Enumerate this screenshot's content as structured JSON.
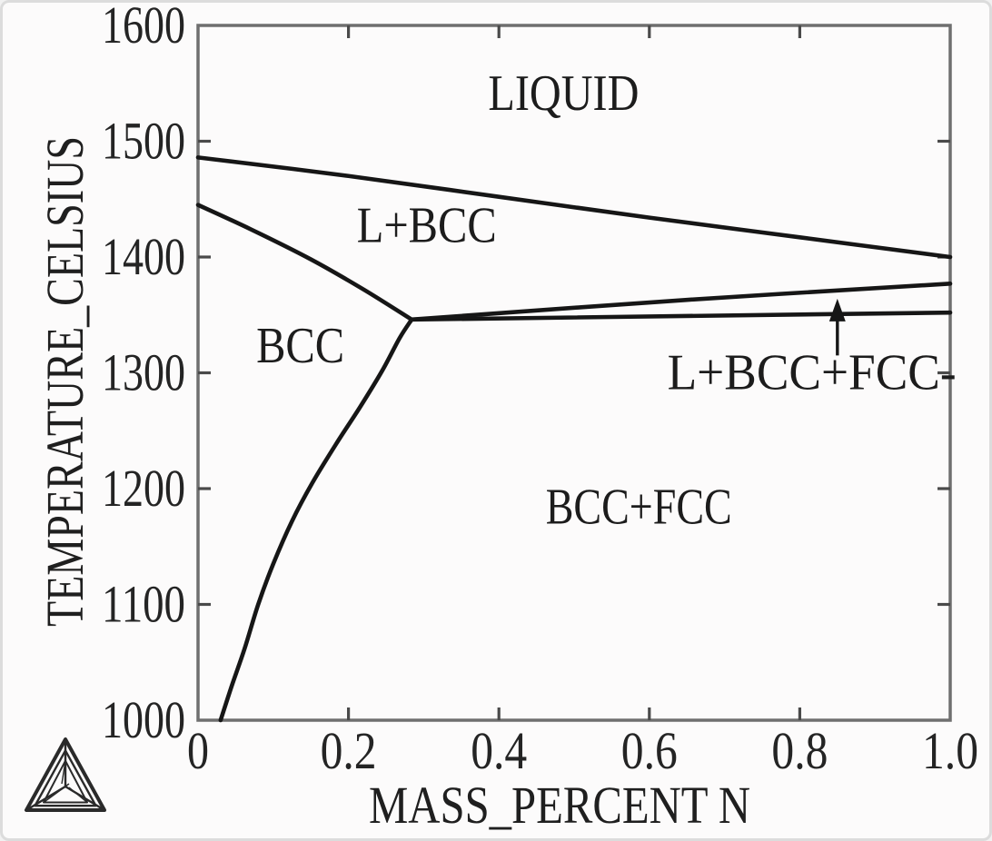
{
  "window": {
    "description": "Thermo-Calc binary phase diagram plot",
    "branding_logo": "thermo-calc-triangle-logo"
  },
  "colors": {
    "phase_line": "#161616",
    "axis_frame": "#6f6f6f",
    "tick": "#4a4a4a",
    "text": "#1f1f1f",
    "background": "#fcfbfb",
    "frame_border": "#dcdcdc"
  },
  "chart_data": {
    "type": "line",
    "title": "",
    "xlabel": "MASS_PERCENT N",
    "ylabel": "TEMPERATURE_CELSIUS",
    "xlim": [
      0,
      1.0
    ],
    "ylim": [
      1000,
      1600
    ],
    "grid": false,
    "legend": "none",
    "x_ticks": [
      0,
      0.2,
      0.4,
      0.6,
      0.8,
      1.0
    ],
    "x_tick_labels": [
      "0",
      "0.2",
      "0.4",
      "0.6",
      "0.8",
      "1.0"
    ],
    "y_ticks": [
      1000,
      1100,
      1200,
      1300,
      1400,
      1500,
      1600
    ],
    "y_tick_labels": [
      "1000",
      "1100",
      "1200",
      "1300",
      "1400",
      "1500",
      "1600"
    ],
    "series": [
      {
        "name": "liquidus: LIQUID / L+BCC boundary",
        "points": [
          [
            0,
            1486
          ],
          [
            0.2,
            1470
          ],
          [
            0.4,
            1452
          ],
          [
            0.6,
            1434
          ],
          [
            0.8,
            1417
          ],
          [
            1.0,
            1400
          ]
        ]
      },
      {
        "name": "L+BCC / BCC boundary",
        "points": [
          [
            0,
            1445
          ],
          [
            0.07,
            1424
          ],
          [
            0.15,
            1398
          ],
          [
            0.22,
            1372
          ],
          [
            0.284,
            1346
          ]
        ]
      },
      {
        "name": "BCC / BCC+FCC solvus",
        "points": [
          [
            0.284,
            1346
          ],
          [
            0.268,
            1330
          ],
          [
            0.245,
            1302
          ],
          [
            0.215,
            1270
          ],
          [
            0.185,
            1240
          ],
          [
            0.152,
            1205
          ],
          [
            0.125,
            1172
          ],
          [
            0.1,
            1135
          ],
          [
            0.08,
            1100
          ],
          [
            0.062,
            1062
          ],
          [
            0.045,
            1030
          ],
          [
            0.03,
            1000
          ]
        ]
      },
      {
        "name": "L+BCC / L+BCC+FCC boundary",
        "points": [
          [
            0.284,
            1346
          ],
          [
            0.65,
            1363
          ],
          [
            1.0,
            1377
          ]
        ]
      },
      {
        "name": "L+BCC+FCC / BCC+FCC boundary",
        "points": [
          [
            0.284,
            1346
          ],
          [
            1.0,
            1352
          ]
        ]
      }
    ],
    "invariant_point": {
      "x": 0.284,
      "T": 1346
    },
    "region_labels": [
      {
        "id": "liquid",
        "label": "LIQUID",
        "x": 0.486,
        "T": 1541,
        "anchor": "middle"
      },
      {
        "id": "l-bcc",
        "label": "L+BCC",
        "x": 0.304,
        "T": 1427,
        "anchor": "middle"
      },
      {
        "id": "bcc",
        "label": "BCC",
        "x": 0.136,
        "T": 1323,
        "anchor": "middle"
      },
      {
        "id": "bcc-fcc",
        "label": "BCC+FCC",
        "x": 0.586,
        "T": 1184,
        "anchor": "middle"
      },
      {
        "id": "l-bcc-fcc",
        "label": "L+BCC+FCC-",
        "x": 1.008,
        "T": 1300,
        "anchor": "end"
      }
    ],
    "annotation_arrow": {
      "x": 0.85,
      "tail_T": 1315,
      "tip_T": 1364,
      "points_to": "L+BCC+FCC region"
    }
  }
}
